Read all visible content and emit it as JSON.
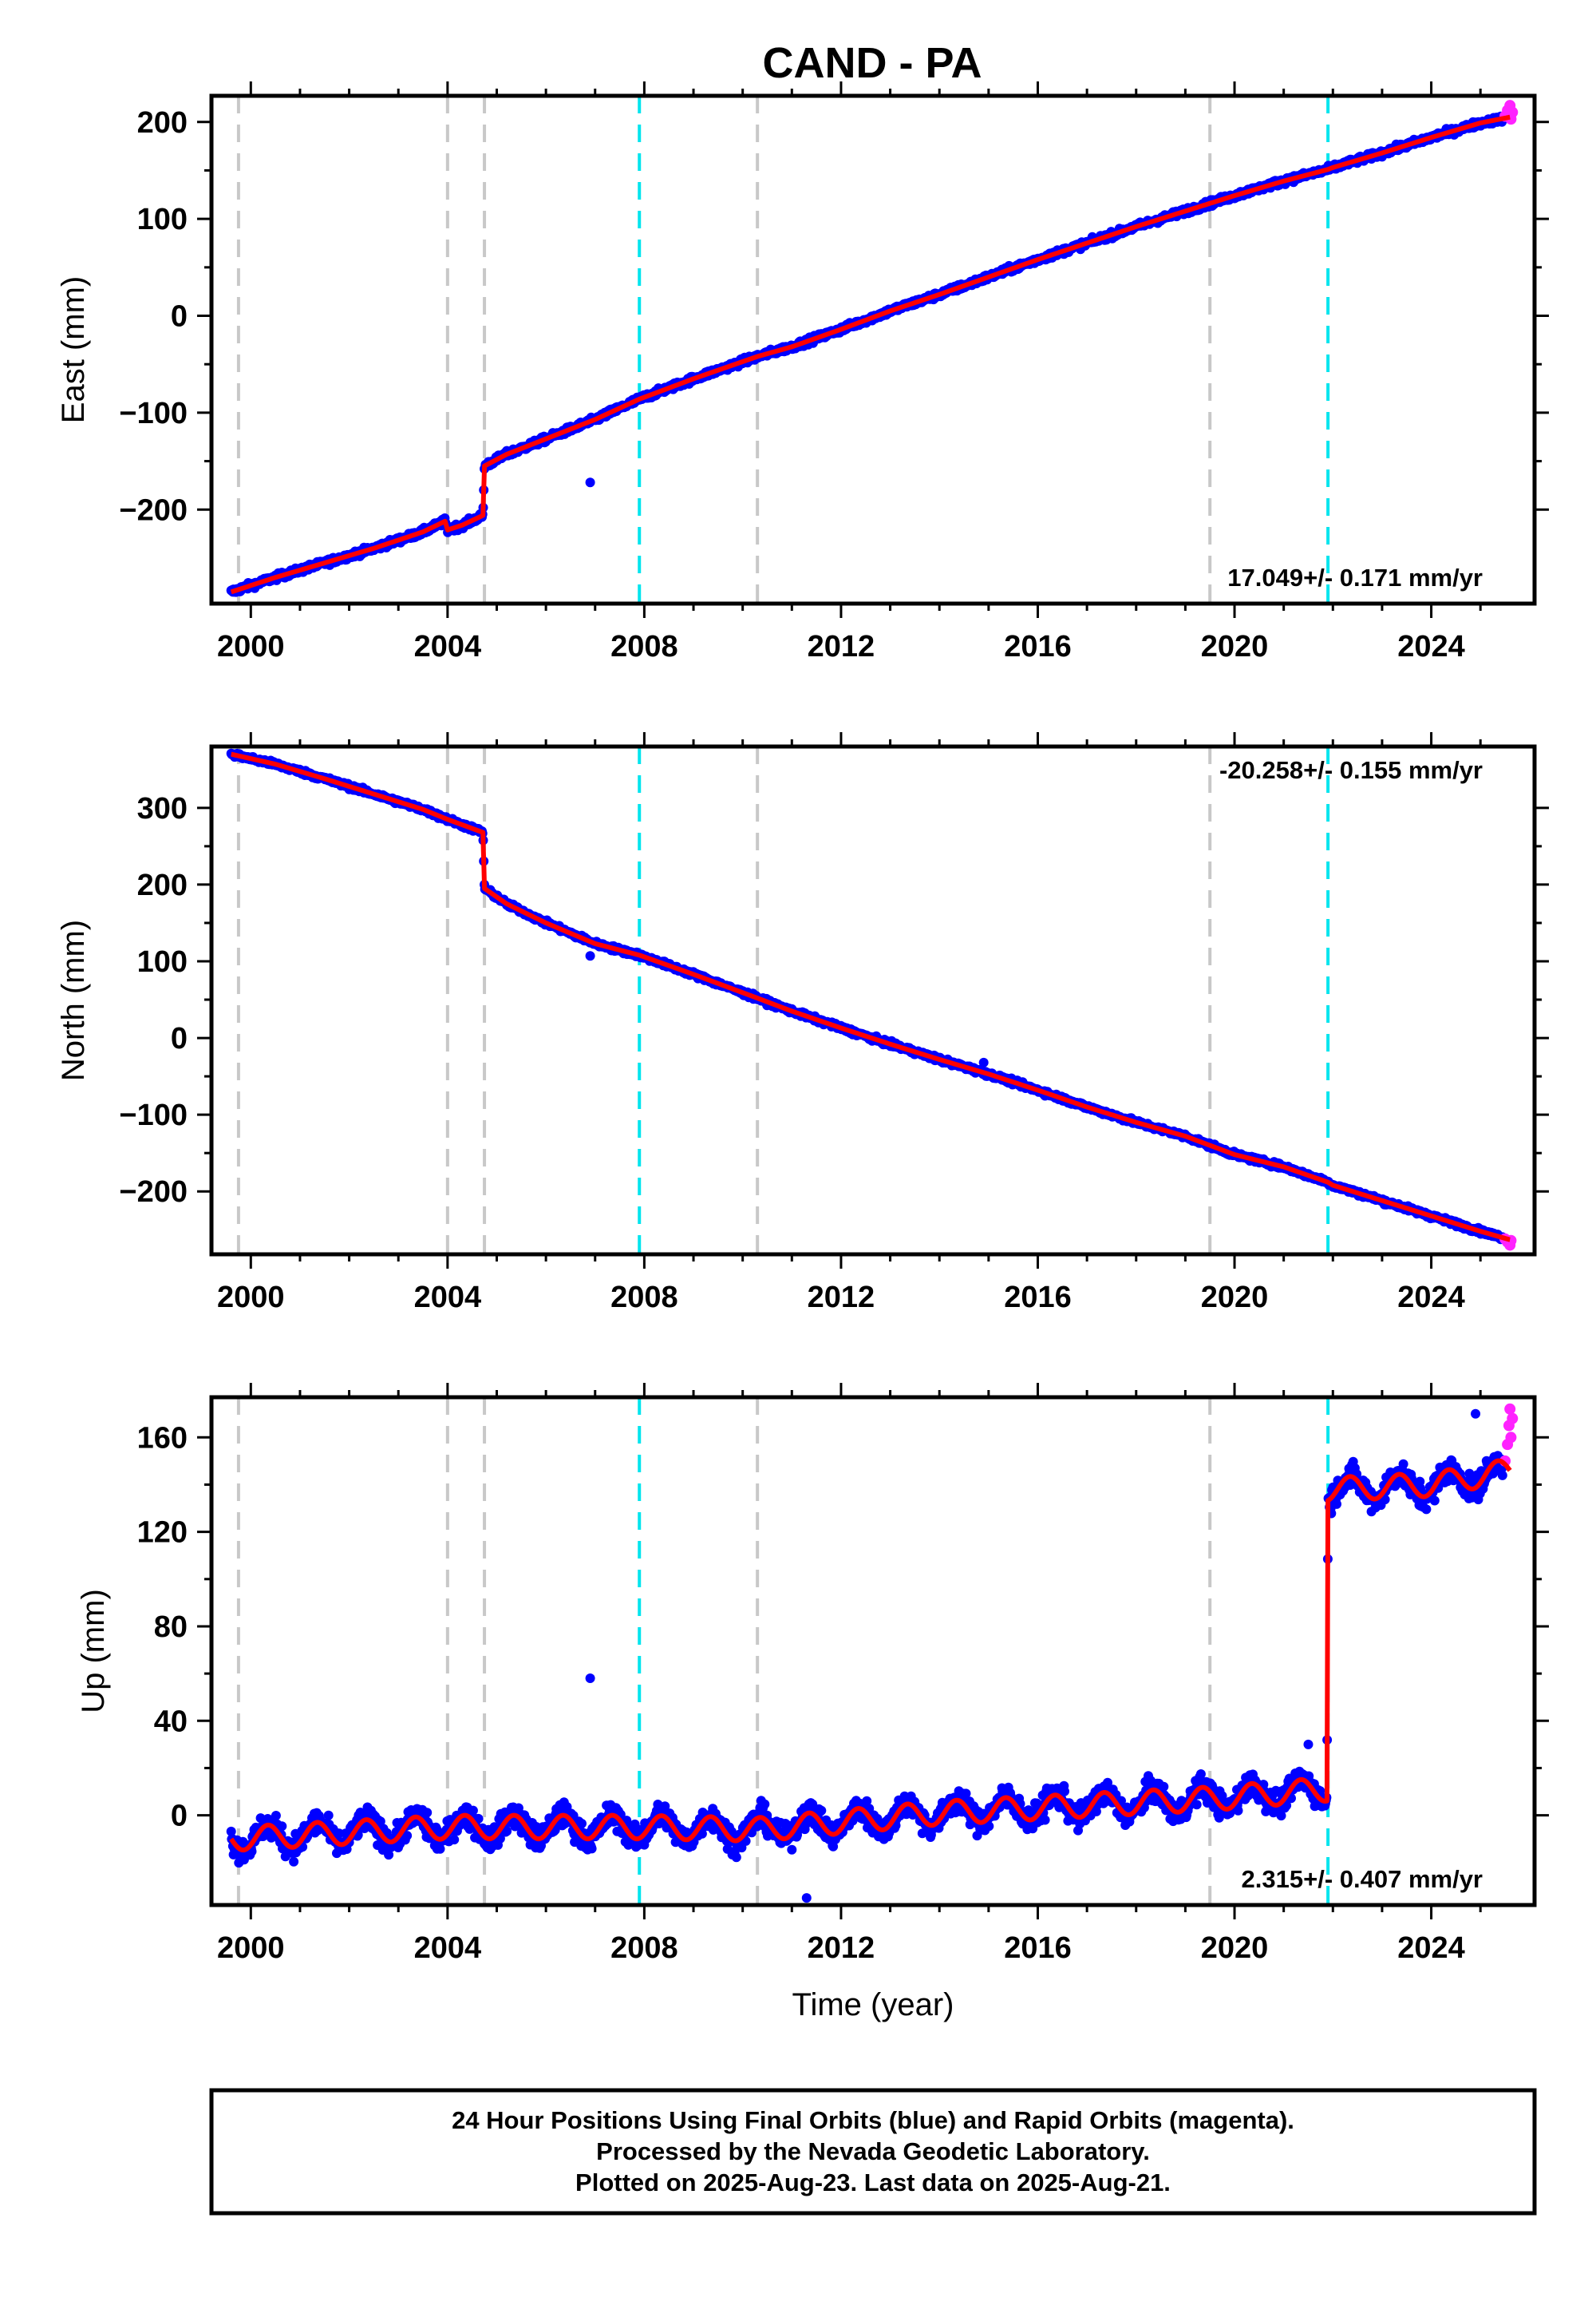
{
  "colors": {
    "final_orbits": "#0000ff",
    "rapid_orbits": "#ff22ff",
    "model_fit": "#ff0000",
    "equipment_change": "#c8c8c8",
    "earthquake": "#00e5ee",
    "frame": "#000000"
  },
  "footer": {
    "line1": "24 Hour Positions Using Final Orbits (blue) and Rapid Orbits (magenta).",
    "line2": "Processed by the Nevada Geodetic Laboratory.",
    "line3": "Plotted on 2025-Aug-23. Last data on 2025-Aug-21."
  },
  "chart_data": [
    {
      "type": "scatter",
      "title": "CAND - PA",
      "xlabel": "",
      "ylabel": "East (mm)",
      "xlim": [
        1999.2,
        2026.1
      ],
      "ylim": [
        -297,
        227
      ],
      "x_ticks": [
        2000,
        2004,
        2008,
        2012,
        2016,
        2020,
        2024
      ],
      "y_ticks": [
        -200,
        -100,
        0,
        100,
        200
      ],
      "y_tick_labels": [
        "−200",
        "−100",
        "0",
        "100",
        "200"
      ],
      "rate_label": "17.049+/- 0.171 mm/yr",
      "rate_position": "bottom-right",
      "vlines_gray": [
        1999.75,
        2004.0,
        2004.75,
        2010.3,
        2019.5
      ],
      "vlines_cyan": [
        2007.9,
        2021.9
      ],
      "model_fit": [
        [
          1999.6,
          -285
        ],
        [
          2000.5,
          -270
        ],
        [
          2001.5,
          -255
        ],
        [
          2002.5,
          -240
        ],
        [
          2003.5,
          -223
        ],
        [
          2003.95,
          -212
        ],
        [
          2004.0,
          -221
        ],
        [
          2004.3,
          -216
        ],
        [
          2004.72,
          -206
        ],
        [
          2004.75,
          -155
        ],
        [
          2005.2,
          -143
        ],
        [
          2006,
          -127
        ],
        [
          2007,
          -107
        ],
        [
          2007.9,
          -86
        ],
        [
          2009,
          -65
        ],
        [
          2010.3,
          -42
        ],
        [
          2011,
          -32
        ],
        [
          2012,
          -14
        ],
        [
          2013,
          5
        ],
        [
          2014,
          22
        ],
        [
          2015,
          40
        ],
        [
          2016,
          58
        ],
        [
          2017,
          75
        ],
        [
          2018,
          92
        ],
        [
          2019,
          108
        ],
        [
          2019.5,
          116
        ],
        [
          2020,
          124
        ],
        [
          2021,
          139
        ],
        [
          2021.9,
          151
        ],
        [
          2022,
          153
        ],
        [
          2023,
          168
        ],
        [
          2024,
          184
        ],
        [
          2025,
          199
        ],
        [
          2025.6,
          205
        ]
      ],
      "outliers": [
        [
          2006.9,
          -172
        ]
      ],
      "rapid_points": [
        [
          2025.5,
          206
        ],
        [
          2025.55,
          212
        ],
        [
          2025.6,
          217
        ],
        [
          2025.62,
          203
        ],
        [
          2025.65,
          210
        ]
      ]
    },
    {
      "type": "scatter",
      "title": "",
      "xlabel": "",
      "ylabel": "North (mm)",
      "xlim": [
        1999.2,
        2026.1
      ],
      "ylim": [
        -282,
        380
      ],
      "x_ticks": [
        2000,
        2004,
        2008,
        2012,
        2016,
        2020,
        2024
      ],
      "y_ticks": [
        -200,
        -100,
        0,
        100,
        200,
        300
      ],
      "y_tick_labels": [
        "−200",
        "−100",
        "0",
        "100",
        "200",
        "300"
      ],
      "rate_label": "-20.258+/- 0.155 mm/yr",
      "rate_position": "top-right",
      "vlines_gray": [
        1999.75,
        2004.0,
        2004.75,
        2010.3,
        2019.5
      ],
      "vlines_cyan": [
        2007.9,
        2021.9
      ],
      "model_fit": [
        [
          1999.6,
          370
        ],
        [
          2000.5,
          357
        ],
        [
          2001.5,
          338
        ],
        [
          2002.5,
          318
        ],
        [
          2003.5,
          298
        ],
        [
          2004.0,
          285
        ],
        [
          2004.72,
          268
        ],
        [
          2004.75,
          195
        ],
        [
          2005.2,
          175
        ],
        [
          2006,
          150
        ],
        [
          2007,
          123
        ],
        [
          2007.9,
          108
        ],
        [
          2009,
          83
        ],
        [
          2010.3,
          52
        ],
        [
          2011,
          35
        ],
        [
          2012,
          13
        ],
        [
          2013,
          -8
        ],
        [
          2014,
          -28
        ],
        [
          2015,
          -47
        ],
        [
          2016,
          -68
        ],
        [
          2017,
          -90
        ],
        [
          2018,
          -110
        ],
        [
          2019,
          -128
        ],
        [
          2019.5,
          -140
        ],
        [
          2020,
          -152
        ],
        [
          2021,
          -168
        ],
        [
          2021.9,
          -188
        ],
        [
          2022,
          -192
        ],
        [
          2023,
          -212
        ],
        [
          2024,
          -232
        ],
        [
          2025,
          -252
        ],
        [
          2025.6,
          -263
        ]
      ],
      "outliers": [
        [
          2006.9,
          107
        ],
        [
          2014.9,
          -32
        ]
      ],
      "rapid_points": [
        [
          2025.5,
          -262
        ],
        [
          2025.55,
          -266
        ],
        [
          2025.6,
          -270
        ],
        [
          2025.62,
          -264
        ]
      ]
    },
    {
      "type": "scatter",
      "title": "",
      "xlabel": "Time (year)",
      "ylabel": "Up (mm)",
      "xlim": [
        1999.2,
        2026.1
      ],
      "ylim": [
        -38,
        177
      ],
      "x_ticks": [
        2000,
        2004,
        2008,
        2012,
        2016,
        2020,
        2024
      ],
      "y_ticks": [
        0,
        40,
        80,
        120,
        160
      ],
      "y_tick_labels": [
        "0",
        "40",
        "80",
        "120",
        "160"
      ],
      "rate_label": "2.315+/- 0.407 mm/yr",
      "rate_position": "bottom-right",
      "vlines_gray": [
        1999.75,
        2004.0,
        2004.75,
        2010.3,
        2019.5
      ],
      "vlines_cyan": [
        2007.9,
        2021.9
      ],
      "seasonal_amplitude_mm": 5,
      "model_fit": [
        [
          1999.6,
          -10
        ],
        [
          2004.0,
          -5
        ],
        [
          2007.9,
          -5
        ],
        [
          2010.3,
          -6
        ],
        [
          2014,
          1
        ],
        [
          2019.5,
          7
        ],
        [
          2021.88,
          11
        ],
        [
          2021.9,
          138
        ],
        [
          2024,
          140
        ],
        [
          2025.6,
          146
        ]
      ],
      "outliers": [
        [
          2006.9,
          58
        ],
        [
          2011.3,
          -35
        ],
        [
          2021.5,
          30
        ],
        [
          2024.9,
          170
        ]
      ],
      "rapid_points": [
        [
          2025.5,
          150
        ],
        [
          2025.55,
          157
        ],
        [
          2025.58,
          165
        ],
        [
          2025.6,
          172
        ],
        [
          2025.62,
          160
        ],
        [
          2025.65,
          168
        ]
      ]
    }
  ]
}
